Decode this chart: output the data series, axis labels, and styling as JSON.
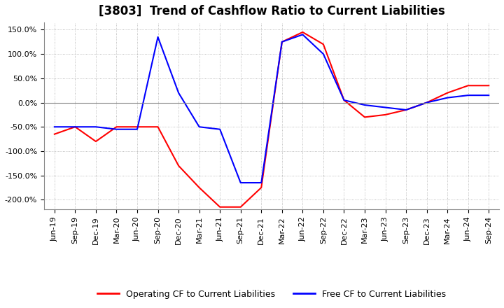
{
  "title": "[3803]  Trend of Cashflow Ratio to Current Liabilities",
  "legend_labels": [
    "Operating CF to Current Liabilities",
    "Free CF to Current Liabilities"
  ],
  "line_colors": [
    "#ff0000",
    "#0000ff"
  ],
  "x_labels": [
    "Jun-19",
    "Sep-19",
    "Dec-19",
    "Mar-20",
    "Jun-20",
    "Sep-20",
    "Dec-20",
    "Mar-21",
    "Jun-21",
    "Sep-21",
    "Dec-21",
    "Mar-22",
    "Jun-22",
    "Sep-22",
    "Dec-22",
    "Mar-23",
    "Jun-23",
    "Sep-23",
    "Dec-23",
    "Mar-24",
    "Jun-24",
    "Sep-24"
  ],
  "operating_cf": [
    -65,
    -50,
    -80,
    -50,
    -50,
    -50,
    -130,
    -175,
    -215,
    -215,
    -175,
    125,
    145,
    120,
    5,
    -30,
    -25,
    -15,
    0,
    20,
    35,
    35
  ],
  "free_cf": [
    -50,
    -50,
    -50,
    -55,
    -55,
    135,
    20,
    -50,
    -55,
    -165,
    -165,
    125,
    140,
    100,
    5,
    -5,
    -10,
    -15,
    0,
    10,
    15,
    15
  ],
  "ylim": [
    -220,
    165
  ],
  "yticks": [
    -200,
    -150,
    -100,
    -50,
    0,
    50,
    100,
    150
  ],
  "background_color": "#ffffff",
  "plot_bg_color": "#ffffff",
  "grid_color": "#aaaaaa",
  "title_fontsize": 12,
  "tick_fontsize": 8,
  "line_width": 1.5
}
